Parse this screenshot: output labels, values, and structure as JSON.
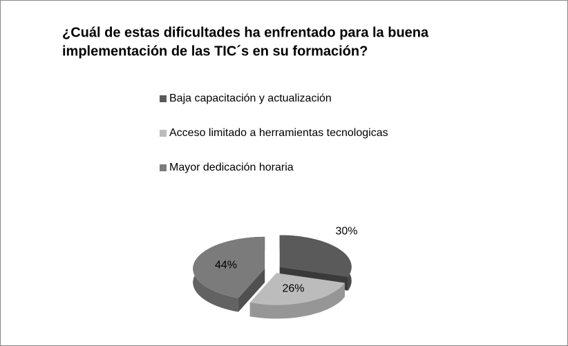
{
  "chart_data": {
    "type": "pie",
    "title": [
      "¿Cuál de estas dificultades ha enfrentado para la buena",
      "implementación de las TIC´s en su formación?"
    ],
    "categories": [
      "Baja capacitación y actualización",
      "Acceso limitado a herramientas tecnologicas",
      "Mayor dedicación horaria"
    ],
    "values": [
      30,
      26,
      44
    ],
    "value_labels": [
      "30%",
      "26%",
      "44%"
    ],
    "colors": [
      "#5a5a5a",
      "#bcbcbc",
      "#7b7b7b"
    ],
    "legend": "top"
  }
}
